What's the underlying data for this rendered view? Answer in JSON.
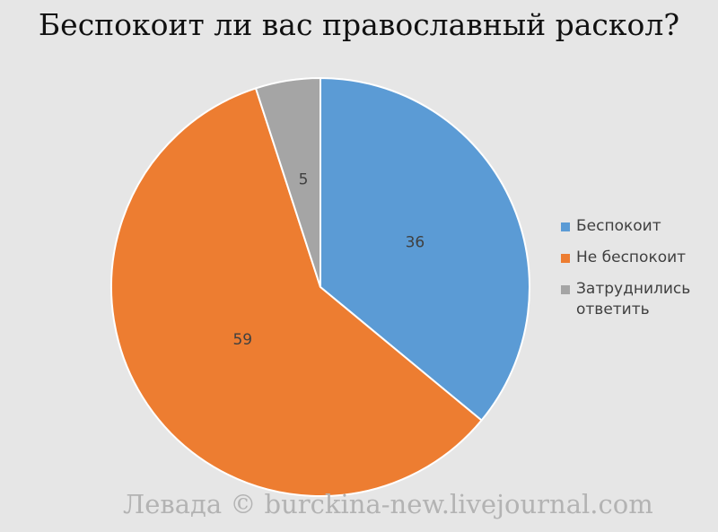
{
  "chart_data": {
    "type": "pie",
    "title": "Беспокоит ли вас православный раскол?",
    "categories": [
      "Беспокоит",
      "Не беспокоит",
      "Затруднились ответить"
    ],
    "values": [
      36,
      59,
      5
    ],
    "data_labels": [
      "36",
      "59",
      "5"
    ],
    "colors": [
      "#5b9bd5",
      "#ed7d31",
      "#a5a5a5"
    ],
    "start_angle_deg": 0,
    "direction": "clockwise",
    "legend_position": "right"
  },
  "legend": {
    "items": [
      {
        "label": "Беспокоит",
        "color": "#5b9bd5"
      },
      {
        "label": "Не беспокоит",
        "color": "#ed7d31"
      },
      {
        "label": "Затруднились ответить",
        "color": "#a5a5a5"
      }
    ]
  },
  "watermark": "Левада © burckina-new.livejournal.com"
}
